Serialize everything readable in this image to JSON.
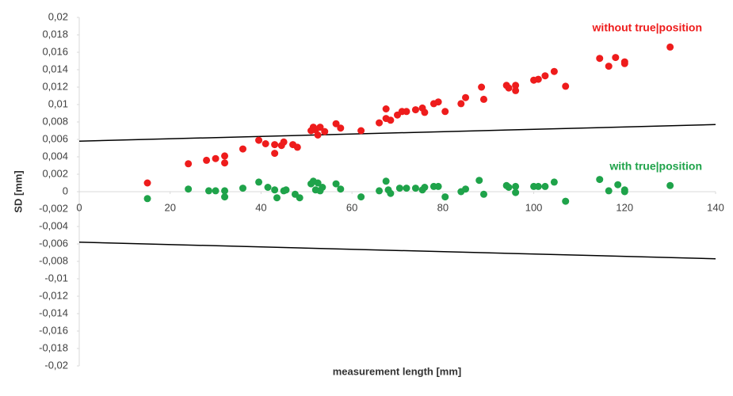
{
  "chart_data": {
    "type": "scatter",
    "xlabel": "measurement length [mm]",
    "ylabel": "SD [mm]",
    "xlim": [
      0,
      140
    ],
    "ylim": [
      -0.02,
      0.02
    ],
    "xticks": [
      0,
      20,
      40,
      60,
      80,
      100,
      120,
      140
    ],
    "yticks": [
      {
        "value": 0.02,
        "label": "0,02"
      },
      {
        "value": 0.018,
        "label": "0,018"
      },
      {
        "value": 0.016,
        "label": "0,016"
      },
      {
        "value": 0.014,
        "label": "0,014"
      },
      {
        "value": 0.012,
        "label": "0,012"
      },
      {
        "value": 0.01,
        "label": "0,01"
      },
      {
        "value": 0.008,
        "label": "0,008"
      },
      {
        "value": 0.006,
        "label": "0,006"
      },
      {
        "value": 0.004,
        "label": "0,004"
      },
      {
        "value": 0.002,
        "label": "0,002"
      },
      0,
      {
        "value": -0.002,
        "label": "-0,002"
      },
      {
        "value": -0.004,
        "label": "-0,004"
      },
      {
        "value": -0.006,
        "label": "-0,006"
      },
      {
        "value": -0.008,
        "label": "-0,008"
      },
      {
        "value": -0.01,
        "label": "-0,01"
      },
      {
        "value": -0.012,
        "label": "-0,012"
      },
      {
        "value": -0.014,
        "label": "-0,014"
      },
      {
        "value": -0.016,
        "label": "-0,016"
      },
      {
        "value": -0.018,
        "label": "-0,018"
      },
      {
        "value": -0.02,
        "label": "-0,02"
      }
    ],
    "series": [
      {
        "name": "without true|position",
        "color": "#ee1c1c",
        "x": [
          15,
          24,
          28,
          30,
          32,
          32,
          36,
          39.5,
          41,
          43,
          43,
          44.5,
          45,
          47,
          48,
          51,
          51.5,
          52,
          52.5,
          53,
          54,
          56.5,
          57.5,
          62,
          66,
          67.5,
          67.5,
          68.5,
          70,
          71,
          72,
          74,
          75.5,
          76,
          78,
          79,
          80.5,
          84,
          85,
          88.5,
          89,
          94,
          94.5,
          96,
          96,
          100,
          101,
          102.5,
          104.5,
          107,
          114.5,
          116.5,
          118,
          120,
          120,
          130
        ],
        "values": [
          0.001,
          0.0032,
          0.0036,
          0.0038,
          0.0041,
          0.0033,
          0.0049,
          0.0059,
          0.0055,
          0.0054,
          0.0044,
          0.0053,
          0.0057,
          0.0054,
          0.0051,
          0.007,
          0.0074,
          0.0071,
          0.0065,
          0.0074,
          0.0069,
          0.0078,
          0.0073,
          0.007,
          0.0079,
          0.0095,
          0.0084,
          0.0082,
          0.0088,
          0.0092,
          0.0092,
          0.0094,
          0.0096,
          0.0091,
          0.0101,
          0.0103,
          0.0092,
          0.0101,
          0.0108,
          0.012,
          0.0106,
          0.0122,
          0.0119,
          0.0122,
          0.0116,
          0.0128,
          0.0129,
          0.0133,
          0.0138,
          0.0121,
          0.0153,
          0.0144,
          0.0154,
          0.0149,
          0.0147,
          0.0166
        ]
      },
      {
        "name": "with true|position",
        "color": "#1fa34a",
        "x": [
          15,
          24,
          28.5,
          30,
          32,
          32,
          36,
          39.5,
          41.5,
          43,
          43.5,
          45,
          45.5,
          47.5,
          48.5,
          51,
          51.5,
          52,
          52.5,
          53,
          53.5,
          56.5,
          57.5,
          62,
          66,
          67.5,
          68,
          68.5,
          70.5,
          72,
          74,
          75.5,
          76,
          78,
          79,
          80.5,
          84,
          85,
          88,
          89,
          94,
          94.5,
          96,
          96,
          100,
          101,
          102.5,
          104.5,
          107,
          114.5,
          116.5,
          118.5,
          120,
          120,
          130
        ],
        "values": [
          -0.0008,
          0.0003,
          0.0001,
          0.0001,
          0.0001,
          -0.0006,
          0.0004,
          0.0011,
          0.0005,
          0.0002,
          -0.0007,
          0.0001,
          0.0002,
          -0.0003,
          -0.0007,
          0.0009,
          0.0012,
          0.0002,
          0.001,
          0.0001,
          0.0005,
          0.0009,
          0.0003,
          -0.0006,
          0.0001,
          0.0012,
          0.0002,
          -0.0002,
          0.0004,
          0.0004,
          0.0004,
          0.0002,
          0.0005,
          0.0006,
          0.0006,
          -0.0006,
          0,
          0.0003,
          0.0013,
          -0.0003,
          0.0007,
          0.0005,
          0.0006,
          -0.0001,
          0.0006,
          0.0006,
          0.0006,
          0.0011,
          -0.0011,
          0.0014,
          0.0001,
          0.0008,
          0.0002,
          0,
          0.0007
        ]
      }
    ],
    "lines": [
      {
        "color": "#000000",
        "x": [
          0,
          140
        ],
        "values": [
          0.0058,
          0.0077
        ]
      },
      {
        "color": "#000000",
        "x": [
          0,
          140
        ],
        "values": [
          -0.0058,
          -0.0077
        ]
      }
    ]
  }
}
